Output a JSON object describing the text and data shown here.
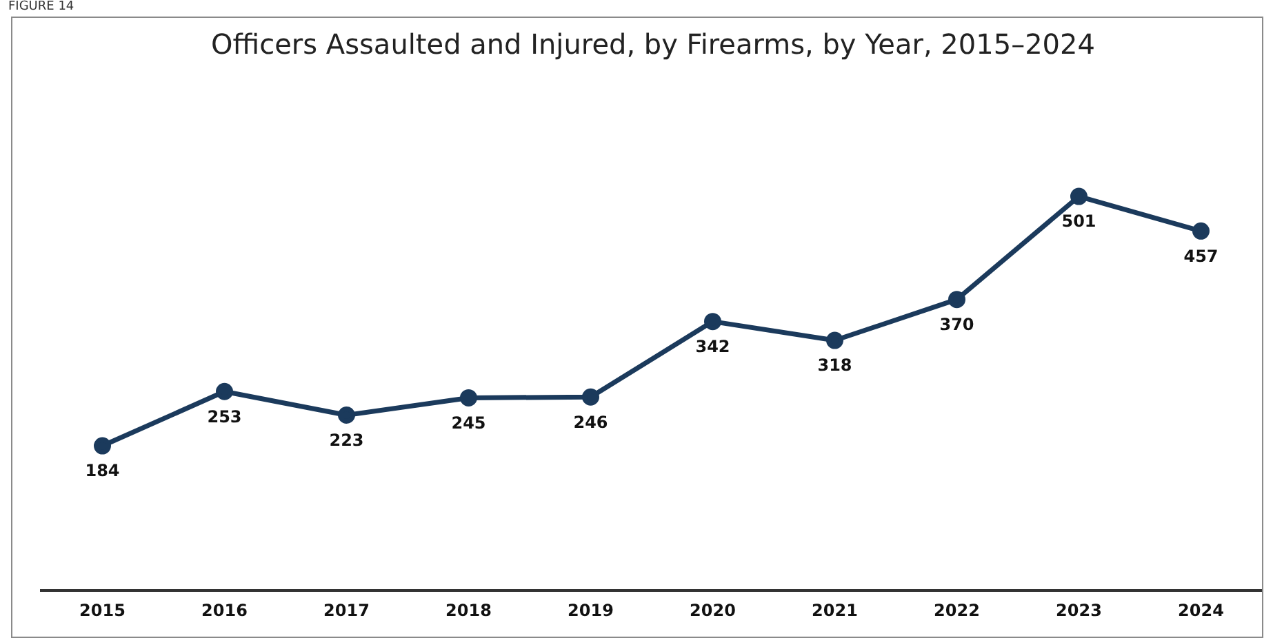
{
  "chart_data": {
    "type": "line",
    "title": "Officers Assaulted and Injured, by Firearms, by Year, 2015–2024",
    "annotations": [
      "FIGURE 14"
    ],
    "categories": [
      "2015",
      "2016",
      "2017",
      "2018",
      "2019",
      "2020",
      "2021",
      "2022",
      "2023",
      "2024"
    ],
    "series": [
      {
        "color": "#1b3a5c",
        "values": [
          184,
          253,
          223,
          245,
          246,
          342,
          318,
          370,
          501,
          457
        ]
      }
    ],
    "tick_labels": "x",
    "data_labels": true,
    "marker": "circle",
    "line_style": "solid",
    "grid": false,
    "legend": false
  }
}
